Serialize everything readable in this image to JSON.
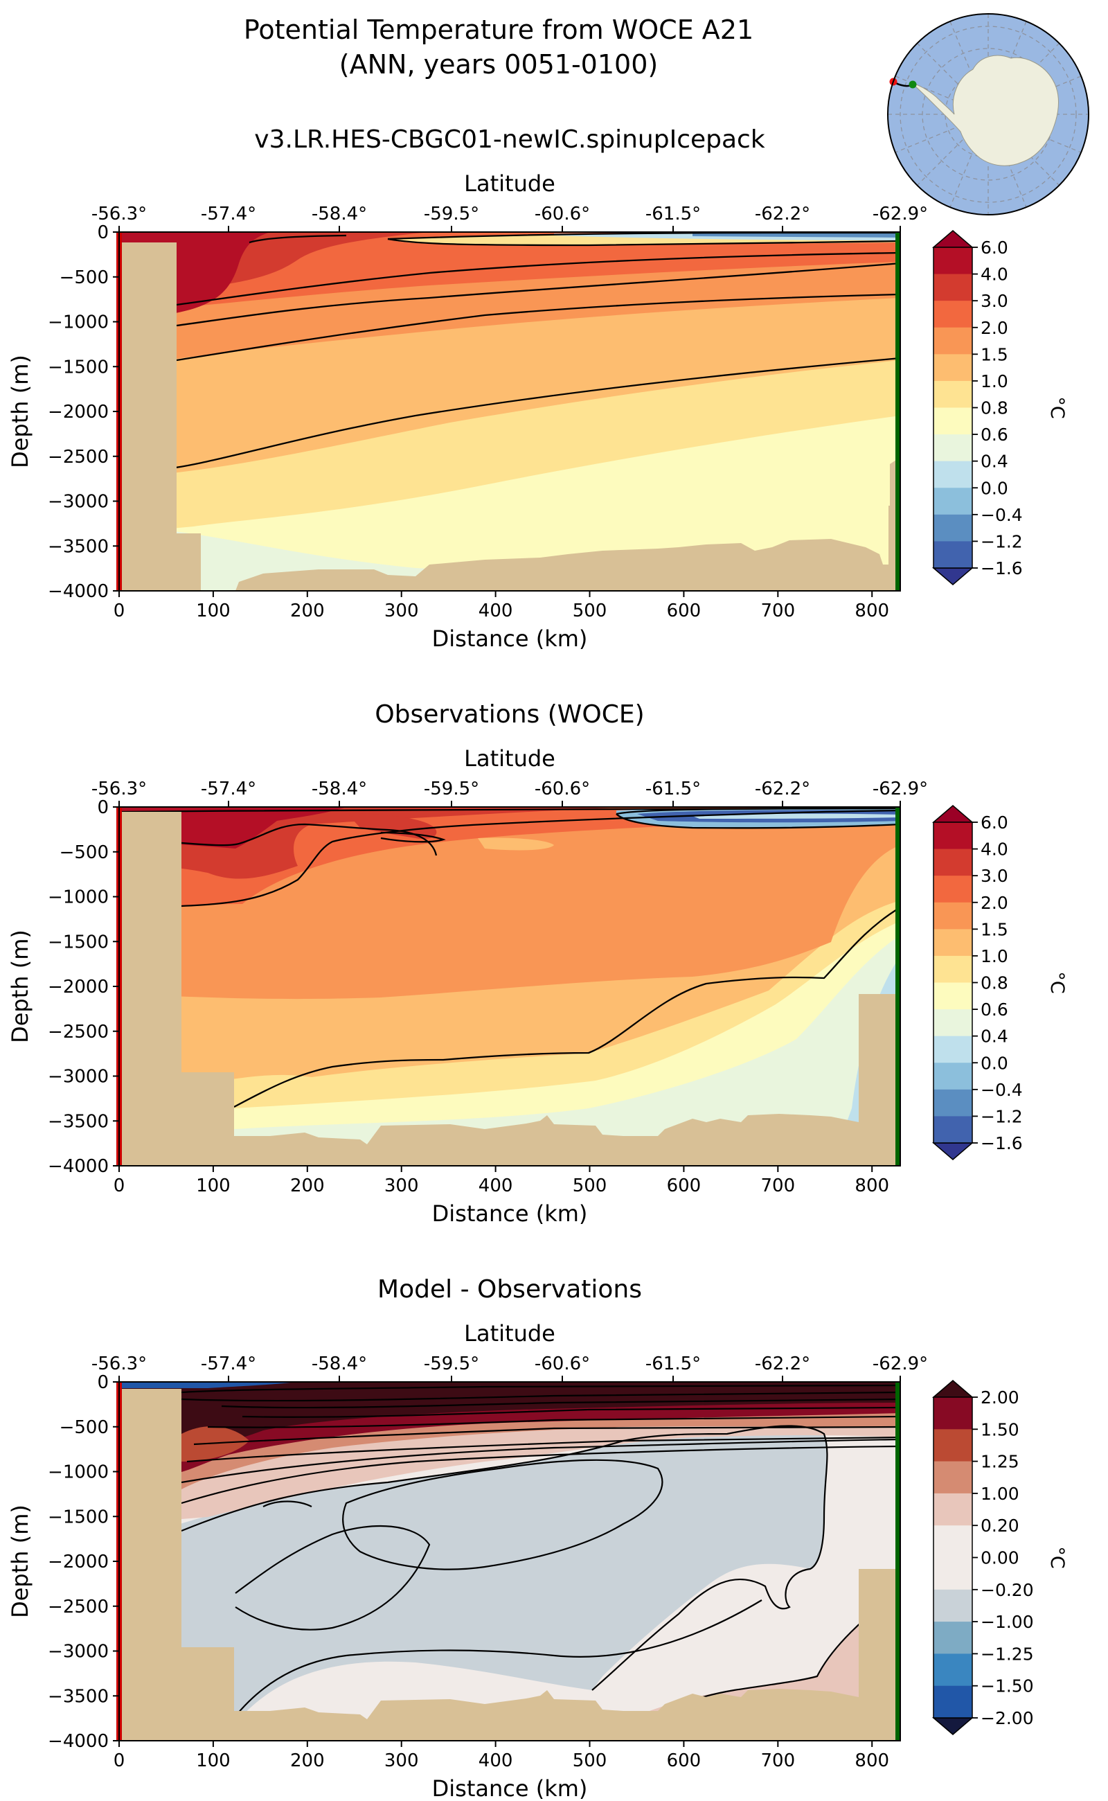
{
  "figure": {
    "title_line1": "Potential Temperature from WOCE A21",
    "title_line2": "(ANN, years 0051-0100)"
  },
  "colors": {
    "land": "#d8c096",
    "ocean_map": "#9ab8e2",
    "continent_map": "#eeeedd",
    "section_start": "#cc0000",
    "section_end": "#006400"
  },
  "chart_data": [
    {
      "type": "contour",
      "title": "v3.LR.HES-CBGC01-newIC.spinupIcepack",
      "xlabel": "Distance (km)",
      "ylabel": "Depth (m)",
      "top_axis_label": "Latitude",
      "xlim": [
        0,
        830
      ],
      "ylim": [
        -4000,
        0
      ],
      "x_ticks": [
        "0",
        "100",
        "200",
        "300",
        "400",
        "500",
        "600",
        "700",
        "800"
      ],
      "y_ticks": [
        "0",
        "−500",
        "−1000",
        "−1500",
        "−2000",
        "−2500",
        "−3000",
        "−3500",
        "−4000"
      ],
      "lat_ticks": [
        "-56.3°",
        "-57.4°",
        "-58.4°",
        "-59.5°",
        "-60.6°",
        "-61.5°",
        "-62.2°",
        "-62.9°"
      ],
      "colorbar": {
        "label": "°C",
        "levels": [
          "6.0",
          "4.0",
          "3.0",
          "2.0",
          "1.5",
          "1.0",
          "0.8",
          "0.6",
          "0.4",
          "0.0",
          "−0.4",
          "−1.2",
          "−1.6"
        ],
        "colors": [
          "#b40f26",
          "#d33b2f",
          "#f2683f",
          "#f99655",
          "#fdbd70",
          "#fee392",
          "#fdfbbe",
          "#e9f5dd",
          "#bfe0ec",
          "#8cbfdc",
          "#5b8ec1",
          "#4163ae"
        ],
        "over_color": "#9b0026",
        "under_color": "#31378f"
      }
    },
    {
      "type": "contour",
      "title": "Observations (WOCE)",
      "xlabel": "Distance (km)",
      "ylabel": "Depth (m)",
      "top_axis_label": "Latitude",
      "xlim": [
        0,
        830
      ],
      "ylim": [
        -4000,
        0
      ],
      "x_ticks": [
        "0",
        "100",
        "200",
        "300",
        "400",
        "500",
        "600",
        "700",
        "800"
      ],
      "y_ticks": [
        "0",
        "−500",
        "−1000",
        "−1500",
        "−2000",
        "−2500",
        "−3000",
        "−3500",
        "−4000"
      ],
      "lat_ticks": [
        "-56.3°",
        "-57.4°",
        "-58.4°",
        "-59.5°",
        "-60.6°",
        "-61.5°",
        "-62.2°",
        "-62.9°"
      ],
      "colorbar": {
        "label": "°C",
        "levels": [
          "6.0",
          "4.0",
          "3.0",
          "2.0",
          "1.5",
          "1.0",
          "0.8",
          "0.6",
          "0.4",
          "0.0",
          "−0.4",
          "−1.2",
          "−1.6"
        ],
        "colors": [
          "#b40f26",
          "#d33b2f",
          "#f2683f",
          "#f99655",
          "#fdbd70",
          "#fee392",
          "#fdfbbe",
          "#e9f5dd",
          "#bfe0ec",
          "#8cbfdc",
          "#5b8ec1",
          "#4163ae"
        ],
        "over_color": "#9b0026",
        "under_color": "#31378f"
      }
    },
    {
      "type": "contour",
      "title": "Model - Observations",
      "xlabel": "Distance (km)",
      "ylabel": "Depth (m)",
      "top_axis_label": "Latitude",
      "xlim": [
        0,
        830
      ],
      "ylim": [
        -4000,
        0
      ],
      "x_ticks": [
        "0",
        "100",
        "200",
        "300",
        "400",
        "500",
        "600",
        "700",
        "800"
      ],
      "y_ticks": [
        "0",
        "−500",
        "−1000",
        "−1500",
        "−2000",
        "−2500",
        "−3000",
        "−3500",
        "−4000"
      ],
      "lat_ticks": [
        "-56.3°",
        "-57.4°",
        "-58.4°",
        "-59.5°",
        "-60.6°",
        "-61.5°",
        "-62.2°",
        "-62.9°"
      ],
      "colorbar": {
        "label": "°C",
        "levels": [
          "2.00",
          "1.50",
          "1.25",
          "1.00",
          "0.20",
          "0.00",
          "−0.20",
          "−1.00",
          "−1.25",
          "−1.50",
          "−2.00"
        ],
        "colors": [
          "#870a24",
          "#bb4a33",
          "#d58b72",
          "#e8c6bb",
          "#f1ebe8",
          "#f1ebe8",
          "#c9d2d8",
          "#7eabc4",
          "#3a86c0",
          "#2157a8"
        ],
        "over_color": "#3d0b14",
        "under_color": "#14193e"
      }
    }
  ]
}
